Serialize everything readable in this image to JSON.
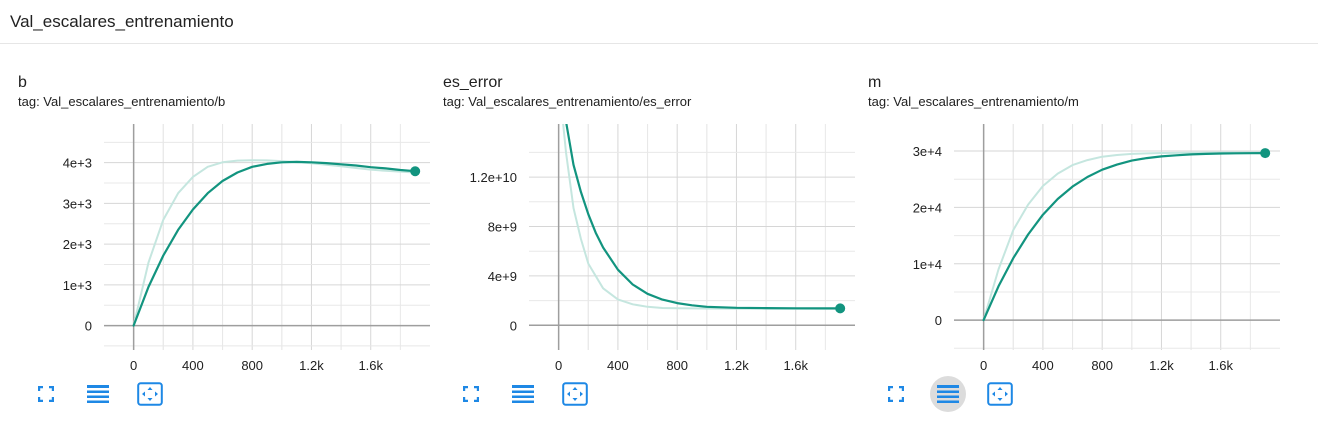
{
  "group": {
    "title": "Val_escalares_entrenamiento"
  },
  "colors": {
    "main_line": "#12947f",
    "smoothed_ghost": "#c5e6df",
    "icon_blue": "#1e88e5",
    "axis_grid": "#d0d0d0"
  },
  "toolbar_icons": [
    "fullscreen-icon",
    "data-download-icon",
    "fit-domain-icon"
  ],
  "chart_data": [
    {
      "type": "line",
      "title": "b",
      "tag": "tag: Val_escalares_entrenamiento/b",
      "xlabel": "",
      "ylabel": "",
      "xlim": [
        -200,
        2000
      ],
      "ylim": [
        -600,
        4950
      ],
      "x_ticks": [
        0,
        400,
        800,
        1200,
        1600
      ],
      "x_tick_labels": [
        "0",
        "400",
        "800",
        "1.2k",
        "1.6k"
      ],
      "y_ticks": [
        0,
        1000,
        2000,
        3000,
        4000
      ],
      "y_tick_labels": [
        "0",
        "1e+3",
        "2e+3",
        "3e+3",
        "4e+3"
      ],
      "grid": true,
      "toolbar_active": -1,
      "series": [
        {
          "role": "raw",
          "x": [
            0,
            100,
            200,
            300,
            400,
            500,
            600,
            700,
            800,
            900,
            1000,
            1100,
            1200,
            1300,
            1400,
            1500,
            1600,
            1700,
            1800,
            1900
          ],
          "values": [
            0,
            1550,
            2600,
            3250,
            3650,
            3900,
            4010,
            4050,
            4060,
            4055,
            4040,
            4015,
            3985,
            3950,
            3910,
            3870,
            3830,
            3800,
            3780,
            3760
          ]
        },
        {
          "role": "smoothed",
          "x": [
            0,
            100,
            200,
            300,
            400,
            500,
            600,
            700,
            800,
            900,
            1000,
            1100,
            1200,
            1300,
            1400,
            1500,
            1600,
            1700,
            1800,
            1900
          ],
          "values": [
            0,
            950,
            1720,
            2350,
            2850,
            3250,
            3550,
            3760,
            3900,
            3970,
            4010,
            4020,
            4010,
            3990,
            3960,
            3930,
            3890,
            3860,
            3820,
            3790
          ]
        }
      ]
    },
    {
      "type": "line",
      "title": "es_error",
      "tag": "tag: Val_escalares_entrenamiento/es_error",
      "xlabel": "",
      "ylabel": "",
      "xlim": [
        -200,
        2000
      ],
      "ylim": [
        -2000000000,
        16300000000
      ],
      "x_ticks": [
        0,
        400,
        800,
        1200,
        1600
      ],
      "x_tick_labels": [
        "0",
        "400",
        "800",
        "1.2k",
        "1.6k"
      ],
      "y_ticks": [
        0,
        4000000000,
        8000000000,
        12000000000
      ],
      "y_tick_labels": [
        "0",
        "4e+9",
        "8e+9",
        "1.2e+10"
      ],
      "grid": true,
      "toolbar_active": -1,
      "series": [
        {
          "role": "raw",
          "x": [
            0,
            50,
            100,
            150,
            200,
            300,
            400,
            500,
            600,
            700,
            800,
            1000,
            1200,
            1400,
            1600,
            1900
          ],
          "values": [
            20000000000,
            14000000000,
            9500000000,
            7000000000,
            5000000000,
            3000000000,
            2100000000,
            1700000000,
            1500000000,
            1400000000,
            1380000000,
            1360000000,
            1350000000,
            1350000000,
            1340000000,
            1340000000
          ]
        },
        {
          "role": "smoothed",
          "x": [
            0,
            50,
            100,
            150,
            200,
            250,
            300,
            400,
            500,
            600,
            700,
            800,
            900,
            1000,
            1200,
            1400,
            1600,
            1900
          ],
          "values": [
            20000000000,
            16500000000,
            13000000000,
            10800000000,
            9000000000,
            7500000000,
            6300000000,
            4500000000,
            3300000000,
            2550000000,
            2080000000,
            1800000000,
            1620000000,
            1500000000,
            1420000000,
            1390000000,
            1380000000,
            1370000000
          ]
        }
      ]
    },
    {
      "type": "line",
      "title": "m",
      "tag": "tag: Val_escalares_entrenamiento/m",
      "xlabel": "",
      "ylabel": "",
      "xlim": [
        -200,
        2000
      ],
      "ylim": [
        -5300,
        34800
      ],
      "x_ticks": [
        0,
        400,
        800,
        1200,
        1600
      ],
      "x_tick_labels": [
        "0",
        "400",
        "800",
        "1.2k",
        "1.6k"
      ],
      "y_ticks": [
        0,
        10000,
        20000,
        30000
      ],
      "y_tick_labels": [
        "0",
        "1e+4",
        "2e+4",
        "3e+4"
      ],
      "grid": true,
      "toolbar_active": 1,
      "series": [
        {
          "role": "raw",
          "x": [
            0,
            100,
            200,
            300,
            400,
            500,
            600,
            700,
            800,
            900,
            1000,
            1200,
            1400,
            1600,
            1900
          ],
          "values": [
            0,
            9000,
            16000,
            20500,
            23800,
            26000,
            27500,
            28400,
            29000,
            29300,
            29500,
            29650,
            29700,
            29720,
            29750
          ]
        },
        {
          "role": "smoothed",
          "x": [
            0,
            100,
            200,
            300,
            400,
            500,
            600,
            700,
            800,
            900,
            1000,
            1100,
            1200,
            1300,
            1400,
            1500,
            1600,
            1700,
            1800,
            1900
          ],
          "values": [
            0,
            6000,
            11000,
            15200,
            18700,
            21500,
            23700,
            25400,
            26700,
            27600,
            28300,
            28750,
            29050,
            29250,
            29400,
            29500,
            29560,
            29600,
            29620,
            29640
          ]
        }
      ]
    }
  ]
}
